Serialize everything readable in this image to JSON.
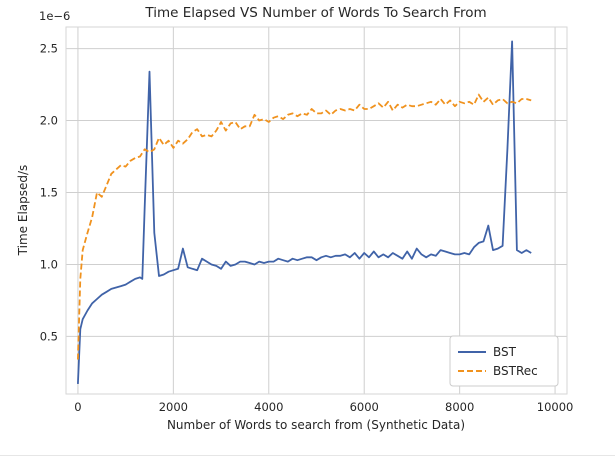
{
  "chart_data": {
    "type": "line",
    "title": "Time Elapsed VS Number of Words To Search From",
    "xlabel": "Number of Words to search from (Synthetic Data)",
    "ylabel": "Time Elapsed/s",
    "y_scale_label": "1e−6",
    "xlim": [
      -250,
      10250
    ],
    "ylim": [
      0.1,
      2.65
    ],
    "x_ticks": [
      0,
      2000,
      4000,
      6000,
      8000,
      10000
    ],
    "x_tick_labels": [
      "0",
      "2000",
      "4000",
      "6000",
      "8000",
      "10000"
    ],
    "y_ticks": [
      0.5,
      1.0,
      1.5,
      2.0,
      2.5
    ],
    "y_tick_labels": [
      "0.5",
      "1.0",
      "1.5",
      "2.0",
      "2.5"
    ],
    "grid": true,
    "legend_position": "lower-right",
    "series": [
      {
        "name": "BST",
        "color": "#4063a8",
        "style": "solid",
        "points": [
          [
            0,
            0.17
          ],
          [
            50,
            0.55
          ],
          [
            100,
            0.62
          ],
          [
            200,
            0.68
          ],
          [
            300,
            0.73
          ],
          [
            400,
            0.76
          ],
          [
            500,
            0.79
          ],
          [
            600,
            0.81
          ],
          [
            700,
            0.83
          ],
          [
            800,
            0.84
          ],
          [
            900,
            0.85
          ],
          [
            1000,
            0.86
          ],
          [
            1100,
            0.88
          ],
          [
            1200,
            0.9
          ],
          [
            1300,
            0.91
          ],
          [
            1350,
            0.9
          ],
          [
            1400,
            1.4
          ],
          [
            1500,
            2.34
          ],
          [
            1600,
            1.22
          ],
          [
            1700,
            0.92
          ],
          [
            1800,
            0.93
          ],
          [
            1900,
            0.95
          ],
          [
            2000,
            0.96
          ],
          [
            2100,
            0.97
          ],
          [
            2200,
            1.11
          ],
          [
            2300,
            0.98
          ],
          [
            2400,
            0.97
          ],
          [
            2500,
            0.96
          ],
          [
            2600,
            1.04
          ],
          [
            2700,
            1.02
          ],
          [
            2800,
            1.0
          ],
          [
            2900,
            0.99
          ],
          [
            3000,
            0.97
          ],
          [
            3100,
            1.02
          ],
          [
            3200,
            0.99
          ],
          [
            3300,
            1.0
          ],
          [
            3400,
            1.02
          ],
          [
            3500,
            1.02
          ],
          [
            3600,
            1.01
          ],
          [
            3700,
            1.0
          ],
          [
            3800,
            1.02
          ],
          [
            3900,
            1.01
          ],
          [
            4000,
            1.02
          ],
          [
            4100,
            1.02
          ],
          [
            4200,
            1.04
          ],
          [
            4300,
            1.03
          ],
          [
            4400,
            1.02
          ],
          [
            4500,
            1.04
          ],
          [
            4600,
            1.03
          ],
          [
            4700,
            1.04
          ],
          [
            4800,
            1.05
          ],
          [
            4900,
            1.05
          ],
          [
            5000,
            1.03
          ],
          [
            5100,
            1.05
          ],
          [
            5200,
            1.06
          ],
          [
            5300,
            1.05
          ],
          [
            5400,
            1.06
          ],
          [
            5500,
            1.06
          ],
          [
            5600,
            1.07
          ],
          [
            5700,
            1.05
          ],
          [
            5800,
            1.08
          ],
          [
            5900,
            1.04
          ],
          [
            6000,
            1.08
          ],
          [
            6100,
            1.05
          ],
          [
            6200,
            1.09
          ],
          [
            6300,
            1.05
          ],
          [
            6400,
            1.07
          ],
          [
            6500,
            1.05
          ],
          [
            6600,
            1.08
          ],
          [
            6700,
            1.06
          ],
          [
            6800,
            1.04
          ],
          [
            6900,
            1.09
          ],
          [
            7000,
            1.04
          ],
          [
            7100,
            1.11
          ],
          [
            7200,
            1.07
          ],
          [
            7300,
            1.05
          ],
          [
            7400,
            1.07
          ],
          [
            7500,
            1.06
          ],
          [
            7600,
            1.1
          ],
          [
            7700,
            1.09
          ],
          [
            7800,
            1.08
          ],
          [
            7900,
            1.07
          ],
          [
            8000,
            1.07
          ],
          [
            8100,
            1.08
          ],
          [
            8200,
            1.07
          ],
          [
            8300,
            1.12
          ],
          [
            8400,
            1.15
          ],
          [
            8500,
            1.16
          ],
          [
            8600,
            1.27
          ],
          [
            8700,
            1.1
          ],
          [
            8800,
            1.11
          ],
          [
            8900,
            1.13
          ],
          [
            9000,
            1.8
          ],
          [
            9100,
            2.55
          ],
          [
            9200,
            1.1
          ],
          [
            9300,
            1.08
          ],
          [
            9400,
            1.1
          ],
          [
            9500,
            1.08
          ]
        ]
      },
      {
        "name": "BSTRec",
        "color": "#f0921e",
        "style": "dashed",
        "points": [
          [
            0,
            0.34
          ],
          [
            50,
            0.9
          ],
          [
            100,
            1.1
          ],
          [
            200,
            1.22
          ],
          [
            300,
            1.33
          ],
          [
            400,
            1.5
          ],
          [
            500,
            1.47
          ],
          [
            600,
            1.55
          ],
          [
            700,
            1.63
          ],
          [
            800,
            1.66
          ],
          [
            900,
            1.69
          ],
          [
            1000,
            1.68
          ],
          [
            1100,
            1.72
          ],
          [
            1200,
            1.74
          ],
          [
            1300,
            1.75
          ],
          [
            1400,
            1.8
          ],
          [
            1500,
            1.78
          ],
          [
            1600,
            1.8
          ],
          [
            1700,
            1.88
          ],
          [
            1800,
            1.83
          ],
          [
            1900,
            1.86
          ],
          [
            2000,
            1.81
          ],
          [
            2100,
            1.86
          ],
          [
            2200,
            1.84
          ],
          [
            2300,
            1.87
          ],
          [
            2400,
            1.92
          ],
          [
            2500,
            1.94
          ],
          [
            2600,
            1.89
          ],
          [
            2700,
            1.9
          ],
          [
            2800,
            1.89
          ],
          [
            2900,
            1.93
          ],
          [
            3000,
            1.99
          ],
          [
            3100,
            1.93
          ],
          [
            3200,
            1.98
          ],
          [
            3300,
            1.99
          ],
          [
            3400,
            1.94
          ],
          [
            3500,
            1.96
          ],
          [
            3600,
            1.96
          ],
          [
            3700,
            2.04
          ],
          [
            3800,
            2.0
          ],
          [
            3900,
            2.01
          ],
          [
            4000,
            1.99
          ],
          [
            4100,
            2.02
          ],
          [
            4200,
            2.03
          ],
          [
            4300,
            2.01
          ],
          [
            4400,
            2.04
          ],
          [
            4500,
            2.05
          ],
          [
            4600,
            2.03
          ],
          [
            4700,
            2.05
          ],
          [
            4800,
            2.04
          ],
          [
            4900,
            2.08
          ],
          [
            5000,
            2.05
          ],
          [
            5100,
            2.05
          ],
          [
            5200,
            2.07
          ],
          [
            5300,
            2.04
          ],
          [
            5400,
            2.07
          ],
          [
            5500,
            2.08
          ],
          [
            5600,
            2.07
          ],
          [
            5700,
            2.08
          ],
          [
            5800,
            2.07
          ],
          [
            5900,
            2.11
          ],
          [
            6000,
            2.08
          ],
          [
            6100,
            2.08
          ],
          [
            6200,
            2.1
          ],
          [
            6300,
            2.12
          ],
          [
            6400,
            2.09
          ],
          [
            6500,
            2.13
          ],
          [
            6600,
            2.07
          ],
          [
            6700,
            2.11
          ],
          [
            6800,
            2.09
          ],
          [
            6900,
            2.11
          ],
          [
            7000,
            2.1
          ],
          [
            7100,
            2.1
          ],
          [
            7200,
            2.11
          ],
          [
            7300,
            2.12
          ],
          [
            7400,
            2.13
          ],
          [
            7500,
            2.11
          ],
          [
            7600,
            2.15
          ],
          [
            7700,
            2.11
          ],
          [
            7800,
            2.14
          ],
          [
            7900,
            2.1
          ],
          [
            8000,
            2.13
          ],
          [
            8100,
            2.12
          ],
          [
            8200,
            2.13
          ],
          [
            8300,
            2.11
          ],
          [
            8400,
            2.18
          ],
          [
            8500,
            2.13
          ],
          [
            8600,
            2.16
          ],
          [
            8700,
            2.11
          ],
          [
            8800,
            2.14
          ],
          [
            8900,
            2.15
          ],
          [
            9000,
            2.12
          ],
          [
            9100,
            2.13
          ],
          [
            9200,
            2.12
          ],
          [
            9300,
            2.15
          ],
          [
            9400,
            2.15
          ],
          [
            9500,
            2.14
          ]
        ]
      }
    ]
  }
}
